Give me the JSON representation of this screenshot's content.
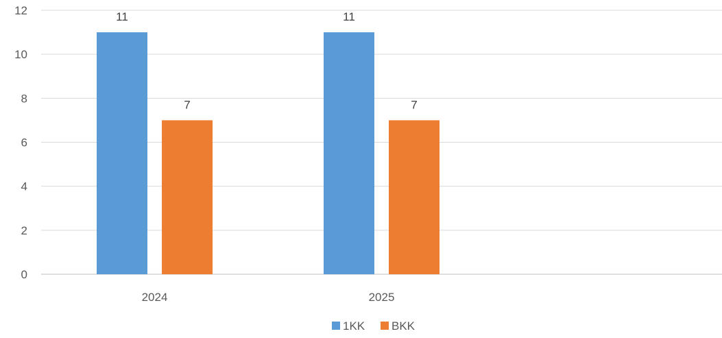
{
  "chart_data": {
    "type": "bar",
    "categories": [
      "2024",
      "2025",
      ""
    ],
    "series": [
      {
        "name": "1KK",
        "values": [
          11,
          11,
          null
        ],
        "color": "#5b9bd5"
      },
      {
        "name": "BKK",
        "values": [
          7,
          7,
          null
        ],
        "color": "#ed7d31"
      }
    ],
    "title": "",
    "xlabel": "",
    "ylabel": "",
    "ylim": [
      0,
      12
    ],
    "yticks": [
      0,
      2,
      4,
      6,
      8,
      10,
      12
    ],
    "grid": true,
    "legend_position": "bottom",
    "data_labels": true
  }
}
